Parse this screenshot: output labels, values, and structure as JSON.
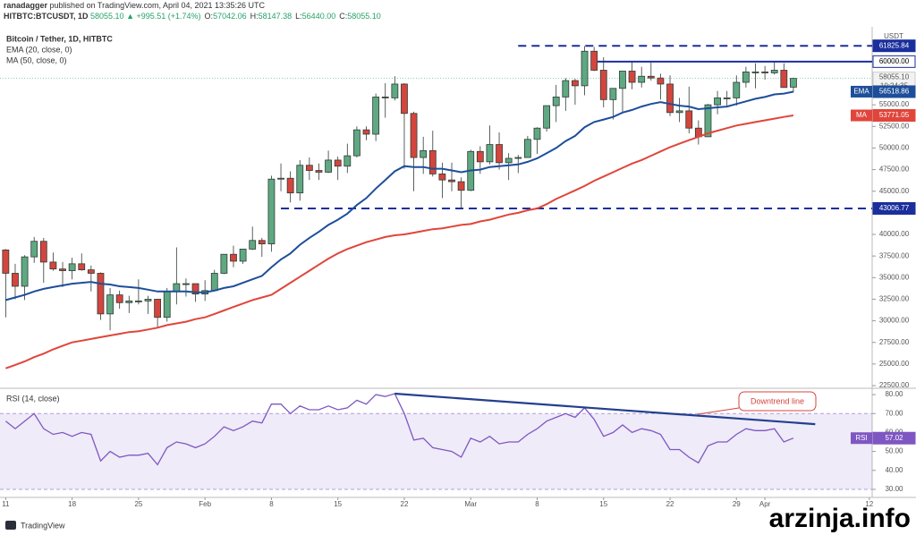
{
  "header": {
    "author": "ranadagger",
    "published": "published on TradingView.com, April 04, 2021 13:35:26 UTC",
    "symbol": "HITBTC:BTCUSDT, 1D",
    "last": "58055.10",
    "change": "▲ +995.51 (+1.74%)",
    "ohlc": [
      {
        "key": "O:",
        "val": "57042.06"
      },
      {
        "key": "H:",
        "val": "58147.38"
      },
      {
        "key": "L:",
        "val": "56440.00"
      },
      {
        "key": "C:",
        "val": "58055.10"
      }
    ]
  },
  "chart_data": [
    {
      "type": "candlestick",
      "title": "Bitcoin / Tether, 1D, HITBTC",
      "unit": "USDT",
      "xlim": [
        -0.6,
        91.3
      ],
      "xticks": [
        {
          "value": 0,
          "label": "11"
        },
        {
          "value": 7,
          "label": "18"
        },
        {
          "value": 14,
          "label": "25"
        },
        {
          "value": 21,
          "label": "Feb"
        },
        {
          "value": 28,
          "label": "8"
        },
        {
          "value": 35,
          "label": "15"
        },
        {
          "value": 42,
          "label": "22"
        },
        {
          "value": 49,
          "label": "Mar"
        },
        {
          "value": 56,
          "label": "8"
        },
        {
          "value": 63,
          "label": "15"
        },
        {
          "value": 70,
          "label": "22"
        },
        {
          "value": 77,
          "label": "29"
        },
        {
          "value": 80,
          "label": "Apr"
        },
        {
          "value": 91,
          "label": "12"
        }
      ],
      "ylim": [
        22400,
        63400
      ],
      "yticks": [
        {
          "value": 22500,
          "label": "22500.00"
        },
        {
          "value": 25000,
          "label": "25000.00"
        },
        {
          "value": 27500,
          "label": "27500.00"
        },
        {
          "value": 30000,
          "label": "30000.00"
        },
        {
          "value": 32500,
          "label": "32500.00"
        },
        {
          "value": 35000,
          "label": "35000.00"
        },
        {
          "value": 37500,
          "label": "37500.00"
        },
        {
          "value": 40000,
          "label": "40000.00"
        },
        {
          "value": 45000,
          "label": "45000.00"
        },
        {
          "value": 47500,
          "label": "47500.00"
        },
        {
          "value": 50000,
          "label": "50000.00"
        },
        {
          "value": 52500,
          "label": "52500.00"
        },
        {
          "value": 55000,
          "label": "55000.00"
        }
      ],
      "candles": {
        "open": [
          38200,
          35500,
          34000,
          37400,
          39200,
          36800,
          36000,
          35800,
          36600,
          35900,
          35500,
          30800,
          33000,
          32100,
          32300,
          32300,
          32500,
          30400,
          33400,
          34300,
          34300,
          33100,
          33500,
          35500,
          37700,
          36900,
          38300,
          39300,
          38900,
          46400,
          46500,
          44800,
          48000,
          47400,
          47200,
          48600,
          47900,
          49100,
          52100,
          51600,
          55900,
          55800,
          57400,
          54000,
          48900,
          49700,
          47000,
          46300,
          46100,
          45100,
          49600,
          48400,
          50400,
          48300,
          48800,
          48900,
          51000,
          52300,
          54900,
          55900,
          57800,
          57200,
          61200,
          59000,
          55600,
          56900,
          58900,
          57600,
          58300,
          58100,
          57400,
          54100,
          54300,
          52300,
          51300,
          55000,
          55800,
          55800,
          57600,
          58800,
          58800,
          58700,
          59000,
          57042.06
        ],
        "high": [
          38300,
          36600,
          37600,
          39700,
          39600,
          37900,
          36800,
          37300,
          37800,
          36400,
          35600,
          33800,
          33500,
          32900,
          34800,
          32900,
          32500,
          33800,
          38500,
          34900,
          34300,
          34700,
          35900,
          37700,
          38700,
          38300,
          40900,
          39600,
          46800,
          48200,
          47300,
          48600,
          48900,
          48200,
          49700,
          49000,
          50500,
          52500,
          52500,
          56300,
          57500,
          58300,
          57500,
          54200,
          51300,
          52000,
          48300,
          48300,
          46600,
          49800,
          50200,
          52600,
          51800,
          49400,
          49200,
          51400,
          52400,
          54900,
          57300,
          58100,
          58000,
          61800,
          61700,
          60500,
          56900,
          58900,
          60000,
          59400,
          59900,
          58600,
          58400,
          55800,
          57100,
          53200,
          55100,
          56600,
          56600,
          58400,
          59400,
          59800,
          59500,
          60000,
          59800,
          58147.38
        ],
        "low": [
          30400,
          32500,
          32400,
          36700,
          34400,
          35800,
          33900,
          34800,
          35800,
          33400,
          30100,
          28900,
          31400,
          30900,
          31900,
          30800,
          29200,
          29900,
          31900,
          32800,
          32200,
          32300,
          33400,
          35400,
          36200,
          36600,
          38200,
          37400,
          38000,
          45000,
          43700,
          43900,
          46300,
          46300,
          47100,
          46300,
          47100,
          48900,
          50900,
          50800,
          53500,
          55500,
          47600,
          45000,
          47000,
          46700,
          44200,
          45000,
          43000,
          45000,
          47000,
          48100,
          47500,
          46300,
          47100,
          48900,
          49300,
          51900,
          53000,
          54300,
          55000,
          56100,
          58900,
          54700,
          53300,
          54100,
          56800,
          57000,
          57800,
          55600,
          53700,
          53000,
          51700,
          50400,
          51300,
          53900,
          54700,
          54900,
          57000,
          56900,
          57900,
          58500,
          57000,
          56440
        ],
        "close": [
          35500,
          34000,
          37400,
          39200,
          36800,
          36000,
          35800,
          36600,
          35900,
          35500,
          30800,
          33000,
          32100,
          32300,
          32300,
          32500,
          30400,
          33400,
          34300,
          34300,
          33100,
          33500,
          35500,
          37700,
          36900,
          38300,
          39300,
          38900,
          46400,
          46500,
          44800,
          48000,
          47400,
          47200,
          48600,
          47900,
          49100,
          52100,
          51600,
          55900,
          55800,
          57400,
          54000,
          48900,
          49700,
          47000,
          46300,
          46100,
          45100,
          49600,
          48400,
          50400,
          48300,
          48800,
          48900,
          51000,
          52300,
          54900,
          55900,
          57800,
          57200,
          61200,
          59000,
          55600,
          56900,
          58900,
          57600,
          58300,
          58100,
          57400,
          54100,
          54300,
          52300,
          51300,
          55000,
          55800,
          55800,
          57600,
          58800,
          58800,
          58700,
          59000,
          57000,
          58055.1
        ],
        "up_color": "#5fa882",
        "down_color": "#d4453e",
        "last_label": "58055.10",
        "countdown": "10:24:35"
      },
      "series": [
        {
          "name": "MA (50, close, 0)",
          "short": "MA",
          "color": "#e0453b",
          "last_label": "53771.05",
          "values": [
            24500,
            24900,
            25300,
            25800,
            26200,
            26700,
            27100,
            27500,
            27700,
            27900,
            28100,
            28300,
            28500,
            28700,
            28800,
            29000,
            29200,
            29500,
            29700,
            29900,
            30200,
            30400,
            30800,
            31200,
            31600,
            32000,
            32400,
            32700,
            33000,
            33700,
            34400,
            35100,
            35800,
            36500,
            37200,
            37800,
            38300,
            38700,
            39100,
            39400,
            39700,
            39900,
            40000,
            40200,
            40400,
            40600,
            40700,
            40900,
            41100,
            41200,
            41500,
            41700,
            42000,
            42300,
            42500,
            42800,
            43000,
            43500,
            44100,
            44600,
            45100,
            45600,
            46200,
            46700,
            47200,
            47700,
            48200,
            48600,
            49100,
            49600,
            50100,
            50500,
            50900,
            51300,
            51700,
            52000,
            52300,
            52600,
            52800,
            53000,
            53200,
            53400,
            53600,
            53771.05
          ]
        },
        {
          "name": "EMA (20, close, 0)",
          "short": "EMA",
          "color": "#1d4e9a",
          "last_label": "56518.86",
          "values": [
            32400,
            32700,
            33000,
            33400,
            33700,
            33900,
            34100,
            34300,
            34400,
            34500,
            34300,
            34200,
            34000,
            33900,
            33800,
            33600,
            33400,
            33400,
            33400,
            33400,
            33300,
            33300,
            33500,
            33800,
            34000,
            34400,
            34800,
            35200,
            36200,
            37100,
            37800,
            38800,
            39600,
            40300,
            41100,
            41700,
            42400,
            43400,
            44200,
            45300,
            46300,
            47300,
            47900,
            47800,
            47800,
            47600,
            47600,
            47400,
            47200,
            47400,
            47500,
            47800,
            47900,
            48000,
            48100,
            48400,
            48800,
            49400,
            50000,
            50800,
            51400,
            52400,
            53000,
            53300,
            53600,
            54100,
            54400,
            54800,
            55100,
            55300,
            55100,
            54900,
            54800,
            54500,
            54600,
            54700,
            54800,
            55100,
            55400,
            55700,
            55900,
            56200,
            56300,
            56518.86
          ]
        }
      ],
      "levels": [
        {
          "value": 61825.84,
          "label": "61825.84",
          "style": "dashed",
          "start": 54,
          "color": "#1a2f9c"
        },
        {
          "value": 60000,
          "label": "60000.00",
          "style": "solid",
          "start": 62,
          "color": "#1a2f9c"
        },
        {
          "value": 43006.77,
          "label": "43006.77",
          "style": "dashed",
          "start": 29,
          "color": "#1a2f9c"
        }
      ]
    },
    {
      "type": "line",
      "title": "RSI (14, close)",
      "xlim": [
        -0.6,
        91.3
      ],
      "ylim": [
        26.2,
        82.4
      ],
      "yticks": [
        {
          "value": 30,
          "label": "30.00"
        },
        {
          "value": 40,
          "label": "40.00"
        },
        {
          "value": 50,
          "label": "50.00"
        },
        {
          "value": 60,
          "label": "60.00"
        },
        {
          "value": 70,
          "label": "70.00"
        },
        {
          "value": 80,
          "label": "80.00"
        }
      ],
      "band": [
        30,
        70
      ],
      "series": [
        {
          "name": "RSI",
          "color": "#7e57c2",
          "last_label": "57.02",
          "values": [
            66,
            62,
            66,
            70,
            62,
            59,
            60,
            58,
            60,
            59,
            45,
            50,
            47,
            48,
            48,
            49,
            43,
            52,
            55,
            54,
            52,
            54,
            58,
            63,
            61,
            63,
            66,
            65,
            75,
            75,
            70,
            74,
            72,
            72,
            74,
            72,
            73,
            77,
            75,
            80,
            79,
            80.5,
            70,
            56,
            57,
            52,
            51,
            50,
            47,
            57,
            55,
            58,
            54,
            55,
            55,
            59,
            62,
            66,
            68,
            70,
            68,
            73,
            67,
            58,
            60,
            64,
            60,
            62,
            61,
            59,
            51,
            51,
            47,
            44,
            53,
            55,
            55,
            59,
            62,
            61,
            61,
            62,
            55,
            57.02
          ]
        }
      ],
      "trendline": {
        "x": [
          41,
          85.3
        ],
        "y": [
          80.5,
          64.4
        ],
        "color": "#233f8f"
      },
      "annotation": "Downtrend line"
    }
  ],
  "footer": {
    "logo": "TradingView",
    "watermark": "arzinja.info"
  }
}
